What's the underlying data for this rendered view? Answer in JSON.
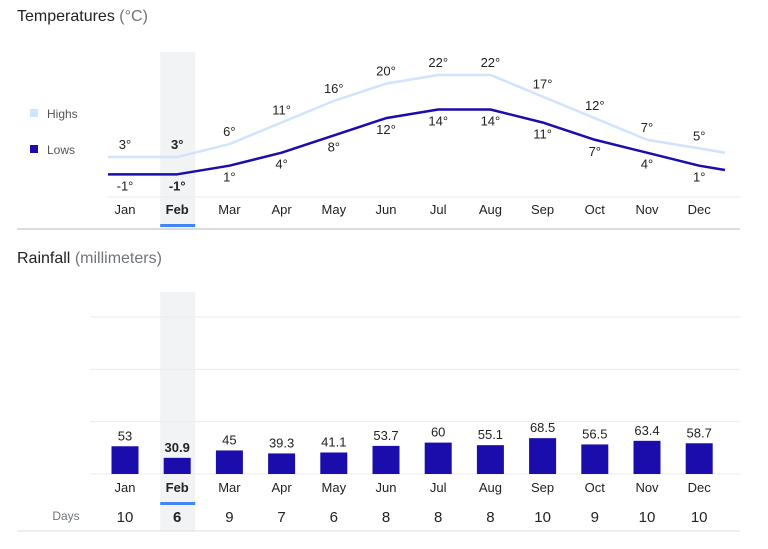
{
  "temperatures": {
    "title": "Temperatures",
    "unit": "(°C)",
    "legend": [
      {
        "label": "Highs",
        "color": "#d2e3fc"
      },
      {
        "label": "Lows",
        "color": "#1a0dab"
      }
    ]
  },
  "rainfall": {
    "title": "Rainfall",
    "unit": "(millimeters)",
    "days_label": "Days"
  },
  "selected_month": "Feb",
  "colors": {
    "highs": "#d2e3fc",
    "lows": "#1a0dab",
    "bars": "#1a0dab",
    "selection": "#4285f4",
    "highlight": "#f1f3f4"
  },
  "chart_data": [
    {
      "type": "line",
      "title": "Temperatures (°C)",
      "categories": [
        "Jan",
        "Feb",
        "Mar",
        "Apr",
        "May",
        "Jun",
        "Jul",
        "Aug",
        "Sep",
        "Oct",
        "Nov",
        "Dec"
      ],
      "series": [
        {
          "name": "Highs",
          "values": [
            3,
            3,
            6,
            11,
            16,
            20,
            22,
            22,
            17,
            12,
            7,
            5
          ]
        },
        {
          "name": "Lows",
          "values": [
            -1,
            -1,
            1,
            4,
            8,
            12,
            14,
            14,
            11,
            7,
            4,
            1
          ]
        }
      ],
      "value_suffix": "°",
      "legend": "left"
    },
    {
      "type": "bar",
      "title": "Rainfall (millimeters)",
      "categories": [
        "Jan",
        "Feb",
        "Mar",
        "Apr",
        "May",
        "Jun",
        "Jul",
        "Aug",
        "Sep",
        "Oct",
        "Nov",
        "Dec"
      ],
      "values": [
        53,
        30.9,
        45,
        39.3,
        41.1,
        53.7,
        60,
        55.1,
        68.5,
        56.5,
        63.4,
        58.7
      ],
      "days": [
        10,
        6,
        9,
        7,
        6,
        8,
        8,
        8,
        10,
        9,
        10,
        10
      ],
      "ylim": [
        0,
        300
      ],
      "grid": true
    }
  ]
}
